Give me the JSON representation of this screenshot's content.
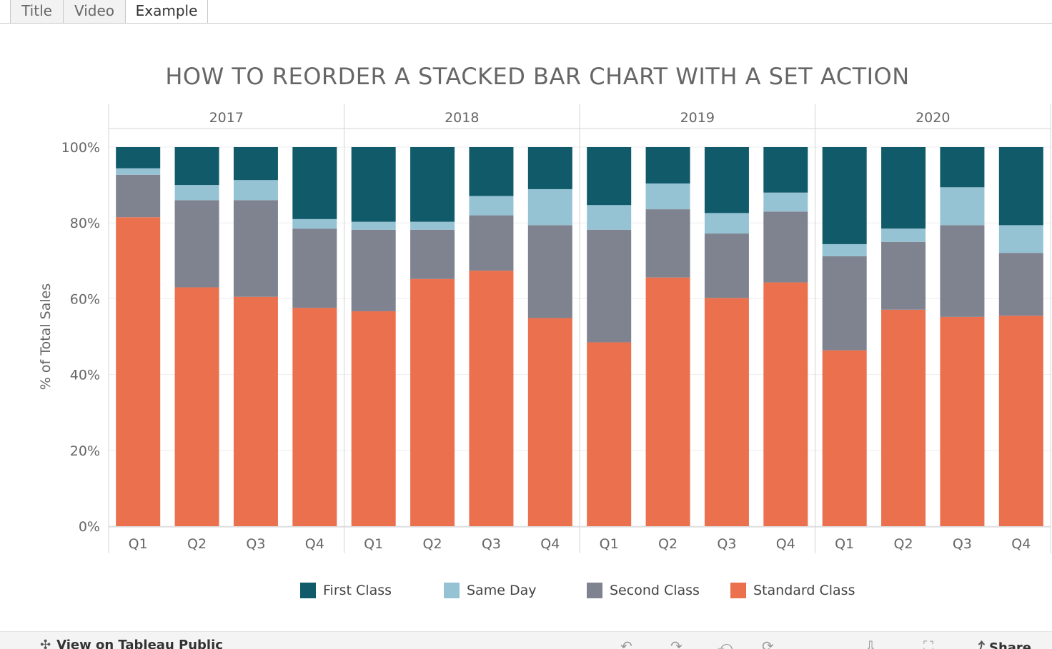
{
  "tabs": [
    {
      "label": "Title",
      "active": false
    },
    {
      "label": "Video",
      "active": false
    },
    {
      "label": "Example",
      "active": true
    }
  ],
  "chart_data": {
    "type": "bar",
    "stacked": true,
    "normalized": true,
    "title": "HOW TO REORDER A STACKED BAR CHART WITH A SET ACTION",
    "ylabel": "% of Total Sales",
    "xlabel": "",
    "ylim": [
      0,
      100
    ],
    "yticks": [
      "0%",
      "20%",
      "40%",
      "60%",
      "80%",
      "100%"
    ],
    "ytick_values": [
      0,
      20,
      40,
      60,
      80,
      100
    ],
    "years": [
      "2017",
      "2018",
      "2019",
      "2020"
    ],
    "quarters": [
      "Q1",
      "Q2",
      "Q3",
      "Q4"
    ],
    "series": [
      {
        "name": "Standard Class",
        "color": "#EB704E",
        "values": [
          [
            81.5,
            63.0,
            60.5,
            57.6
          ],
          [
            56.7,
            65.2,
            67.4,
            54.9
          ],
          [
            48.5,
            65.6,
            60.2,
            64.3
          ],
          [
            46.4,
            57.1,
            55.2,
            55.5
          ]
        ]
      },
      {
        "name": "Second Class",
        "color": "#7F8390",
        "values": [
          [
            11.2,
            23.0,
            25.5,
            20.9
          ],
          [
            21.5,
            13.0,
            14.6,
            24.5
          ],
          [
            29.7,
            18.0,
            17.0,
            18.7
          ],
          [
            24.8,
            17.9,
            24.2,
            16.6
          ]
        ]
      },
      {
        "name": "Same Day",
        "color": "#96C3D4",
        "values": [
          [
            1.7,
            4.0,
            5.3,
            2.5
          ],
          [
            2.1,
            2.1,
            5.1,
            9.5
          ],
          [
            6.5,
            6.8,
            5.4,
            5.0
          ],
          [
            3.2,
            3.5,
            10.0,
            7.3
          ]
        ]
      },
      {
        "name": "First Class",
        "color": "#115A6A",
        "values": [
          [
            5.6,
            10.0,
            8.7,
            19.0
          ],
          [
            19.7,
            19.7,
            12.9,
            11.1
          ],
          [
            15.3,
            9.6,
            17.4,
            12.0
          ],
          [
            25.6,
            21.5,
            10.6,
            20.6
          ]
        ]
      }
    ],
    "legend": [
      "First Class",
      "Same Day",
      "Second Class",
      "Standard Class"
    ],
    "legend_position": "bottom-center",
    "grid": true
  },
  "footer": {
    "view_link": "View on Tableau Public",
    "share": "Share"
  }
}
